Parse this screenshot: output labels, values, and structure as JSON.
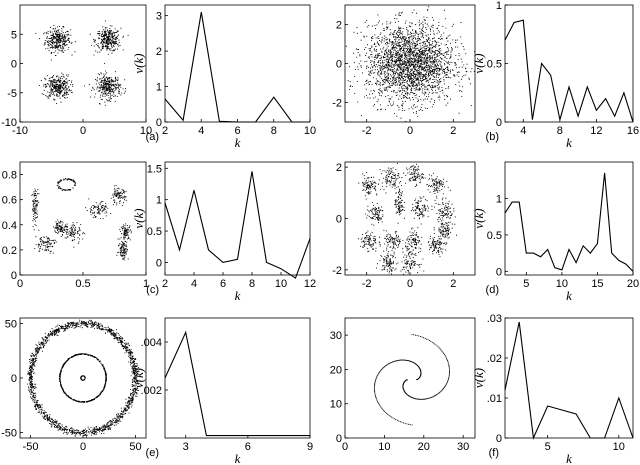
{
  "colors": {
    "ink": "#000000",
    "background": "#ffffff"
  },
  "chart_data": [
    {
      "id": "p_a_scatter",
      "type": "scatter",
      "pattern": "gauss",
      "xlim": [
        -10,
        10
      ],
      "ylim": [
        -10,
        10
      ],
      "xticks": [
        -10,
        0,
        10
      ],
      "yticks": [
        -10,
        -5,
        0,
        5
      ],
      "clusters": [
        [
          -4,
          4,
          1.0,
          1.0
        ],
        [
          4,
          4,
          1.0,
          1.0
        ],
        [
          -4,
          -4,
          1.0,
          1.0
        ],
        [
          4,
          -4,
          1.0,
          1.0
        ]
      ],
      "points_per_cluster": 320,
      "xlabel": "",
      "ylabel": "",
      "panel_label": ""
    },
    {
      "id": "p_a_curve",
      "type": "line",
      "x": [
        2,
        3,
        4,
        5,
        6,
        7,
        8,
        9,
        10
      ],
      "y": [
        0.65,
        0.05,
        3.1,
        0.02,
        0.0,
        0.0,
        0.7,
        0.0,
        0.0
      ],
      "xlim": [
        2,
        10
      ],
      "ylim": [
        0,
        3.3
      ],
      "xticks": [
        2,
        4,
        6,
        8,
        10
      ],
      "yticks": [
        0,
        1,
        2,
        3
      ],
      "xlabel": "k",
      "ylabel": "v(k)",
      "panel_label": "(a)"
    },
    {
      "id": "p_b_scatter",
      "type": "scatter",
      "pattern": "gauss",
      "xlim": [
        -3,
        3
      ],
      "ylim": [
        -3,
        3
      ],
      "xticks": [
        -2,
        0,
        2
      ],
      "yticks": [
        -2,
        0,
        2
      ],
      "clusters": [
        [
          0,
          0,
          1.0,
          1.0
        ]
      ],
      "points_per_cluster": 2400,
      "xlabel": "",
      "ylabel": "",
      "panel_label": ""
    },
    {
      "id": "p_b_curve",
      "type": "line",
      "x": [
        2,
        3,
        4,
        5,
        6,
        7,
        8,
        9,
        10,
        11,
        12,
        13,
        14,
        15,
        16
      ],
      "y": [
        0.7,
        0.85,
        0.87,
        0.02,
        0.5,
        0.4,
        0.02,
        0.3,
        0.05,
        0.3,
        0.1,
        0.2,
        0.05,
        0.25,
        0.0
      ],
      "xlim": [
        2,
        16
      ],
      "ylim": [
        0,
        1.0
      ],
      "xticks": [
        4,
        8,
        12,
        16
      ],
      "yticks": [
        0,
        0.5,
        1
      ],
      "xlabel": "k",
      "ylabel": "v(k)",
      "panel_label": "(b)"
    },
    {
      "id": "p_c_scatter",
      "type": "scatter",
      "pattern": "gauss",
      "xlim": [
        0,
        1
      ],
      "ylim": [
        0,
        0.9
      ],
      "xticks": [
        0,
        0.5,
        1
      ],
      "yticks": [
        0,
        0.2,
        0.4,
        0.6,
        0.8
      ],
      "clusters": [
        [
          0.12,
          0.55,
          0.012,
          0.07
        ],
        [
          0.32,
          0.38,
          0.025,
          0.025
        ],
        [
          0.42,
          0.34,
          0.04,
          0.04
        ],
        [
          0.2,
          0.25,
          0.04,
          0.035
        ],
        [
          0.62,
          0.52,
          0.05,
          0.03
        ],
        [
          0.78,
          0.63,
          0.03,
          0.03
        ],
        [
          0.84,
          0.34,
          0.02,
          0.03
        ],
        [
          0.82,
          0.2,
          0.02,
          0.04
        ]
      ],
      "ring": [
        0.37,
        0.72,
        0.07,
        0.045,
        90
      ],
      "points_per_cluster": 90,
      "xlabel": "",
      "ylabel": "",
      "panel_label": ""
    },
    {
      "id": "p_c_curve",
      "type": "line",
      "x": [
        2,
        3,
        4,
        5,
        6,
        7,
        8,
        9,
        10,
        11,
        12
      ],
      "y": [
        0.95,
        0.2,
        1.15,
        0.2,
        0.0,
        0.05,
        1.45,
        0.0,
        -0.1,
        -0.25,
        0.38
      ],
      "xlim": [
        2,
        12
      ],
      "ylim": [
        -0.2,
        1.6
      ],
      "xticks": [
        2,
        4,
        6,
        8,
        10,
        12
      ],
      "yticks": [
        0,
        0.5,
        1,
        1.5
      ],
      "xlabel": "k",
      "ylabel": "v(k)",
      "panel_label": "(c)"
    },
    {
      "id": "p_d_scatter",
      "type": "scatter",
      "pattern": "gauss",
      "xlim": [
        -3,
        3
      ],
      "ylim": [
        -2.2,
        2.2
      ],
      "xticks": [
        -2,
        0,
        2
      ],
      "yticks": [
        -2,
        0,
        2
      ],
      "clusters": [
        [
          -1.9,
          1.3,
          0.2,
          0.2
        ],
        [
          -0.9,
          1.6,
          0.2,
          0.2
        ],
        [
          0.2,
          1.7,
          0.2,
          0.2
        ],
        [
          1.2,
          1.3,
          0.2,
          0.2
        ],
        [
          -1.6,
          0.2,
          0.2,
          0.2
        ],
        [
          -0.5,
          0.6,
          0.1,
          0.35
        ],
        [
          0.5,
          0.4,
          0.2,
          0.2
        ],
        [
          1.6,
          0.3,
          0.2,
          0.2
        ],
        [
          -1.9,
          -0.9,
          0.2,
          0.2
        ],
        [
          -0.8,
          -0.9,
          0.2,
          0.2
        ],
        [
          0.2,
          -0.9,
          0.2,
          0.2
        ],
        [
          1.2,
          -1.1,
          0.2,
          0.2
        ],
        [
          -1.0,
          -1.7,
          0.2,
          0.2
        ],
        [
          0.0,
          -1.7,
          0.2,
          0.2
        ],
        [
          1.6,
          -0.5,
          0.2,
          0.2
        ]
      ],
      "points_per_cluster": 90,
      "xlabel": "",
      "ylabel": "",
      "panel_label": ""
    },
    {
      "id": "p_d_curve",
      "type": "line",
      "x": [
        2,
        3,
        4,
        5,
        6,
        7,
        8,
        9,
        10,
        11,
        12,
        13,
        14,
        15,
        16,
        17,
        18,
        19,
        20
      ],
      "y": [
        0.8,
        0.95,
        0.95,
        0.25,
        0.25,
        0.2,
        0.3,
        0.05,
        0.02,
        0.3,
        0.12,
        0.35,
        0.25,
        0.38,
        1.35,
        0.25,
        0.15,
        0.1,
        0.0
      ],
      "xlim": [
        2,
        20
      ],
      "ylim": [
        -0.05,
        1.5
      ],
      "xticks": [
        5,
        10,
        15,
        20
      ],
      "yticks": [
        0,
        0.5,
        1
      ],
      "xlabel": "k",
      "ylabel": "v(k)",
      "panel_label": "(d)"
    },
    {
      "id": "p_e_scatter",
      "type": "scatter",
      "pattern": "rings",
      "xlim": [
        -60,
        60
      ],
      "ylim": [
        -55,
        55
      ],
      "xticks": [
        -50,
        0,
        50
      ],
      "yticks": [
        -50,
        0,
        50
      ],
      "rings": [
        [
          50,
          1.6,
          1600
        ],
        [
          22,
          0.2,
          600
        ],
        [
          2,
          0.1,
          60
        ]
      ],
      "xlabel": "",
      "ylabel": "",
      "panel_label": ""
    },
    {
      "id": "p_e_curve",
      "type": "line",
      "x": [
        2,
        3,
        4,
        5,
        6,
        7,
        8,
        9
      ],
      "y": [
        0.0025,
        0.0044,
        0.0001,
        0.0001,
        0.0001,
        0.0001,
        0.0001,
        0.0001
      ],
      "xlim": [
        2,
        9
      ],
      "ylim": [
        0,
        0.005
      ],
      "xticks": [
        3,
        6,
        9
      ],
      "yticks": [
        0.002,
        0.004
      ],
      "ytick_labels": [
        ".002",
        ".004"
      ],
      "xlabel": "k",
      "ylabel": "v(k)",
      "panel_label": "(e)"
    },
    {
      "id": "p_f_scatter",
      "type": "scatter",
      "pattern": "spiral",
      "xlim": [
        0,
        33
      ],
      "ylim": [
        0,
        35
      ],
      "xticks": [
        0,
        10,
        20,
        30
      ],
      "yticks": [
        0,
        10,
        20,
        30
      ],
      "spiral": [
        17,
        17,
        12,
        0.75,
        140
      ],
      "xlabel": "",
      "ylabel": "",
      "panel_label": ""
    },
    {
      "id": "p_f_curve",
      "type": "line",
      "x": [
        2,
        3,
        4,
        5,
        6,
        7,
        8,
        9,
        10,
        11
      ],
      "y": [
        0.012,
        0.029,
        0.0,
        0.008,
        0.007,
        0.006,
        0.0,
        0.0,
        0.01,
        0.0
      ],
      "xlim": [
        2,
        11
      ],
      "ylim": [
        0,
        0.03
      ],
      "xticks": [
        5,
        10
      ],
      "yticks": [
        0,
        0.01,
        0.02,
        0.03
      ],
      "ytick_labels": [
        "0",
        ".01",
        ".02",
        ".03"
      ],
      "xlabel": "k",
      "ylabel": "v(k)",
      "panel_label": "(f)"
    }
  ]
}
